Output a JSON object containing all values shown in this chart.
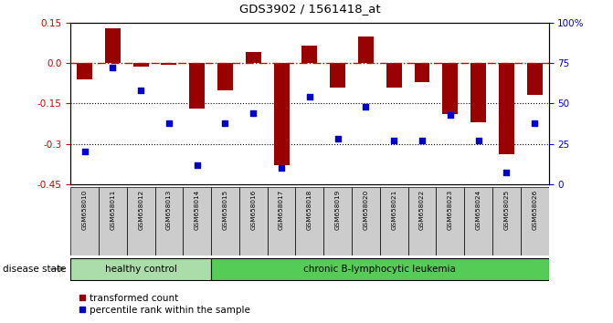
{
  "title": "GDS3902 / 1561418_at",
  "samples": [
    "GSM658010",
    "GSM658011",
    "GSM658012",
    "GSM658013",
    "GSM658014",
    "GSM658015",
    "GSM658016",
    "GSM658017",
    "GSM658018",
    "GSM658019",
    "GSM658020",
    "GSM658021",
    "GSM658022",
    "GSM658023",
    "GSM658024",
    "GSM658025",
    "GSM658026"
  ],
  "bar_values": [
    -0.06,
    0.13,
    -0.015,
    -0.005,
    -0.17,
    -0.1,
    0.04,
    -0.38,
    0.065,
    -0.09,
    0.1,
    -0.09,
    -0.07,
    -0.19,
    -0.22,
    -0.34,
    -0.12
  ],
  "percentile_values": [
    20,
    72,
    58,
    38,
    12,
    38,
    44,
    10,
    54,
    28,
    48,
    27,
    27,
    43,
    27,
    7,
    38
  ],
  "ylim_left": [
    -0.45,
    0.15
  ],
  "ylim_right": [
    0,
    100
  ],
  "yticks_left": [
    0.15,
    0.0,
    -0.15,
    -0.3,
    -0.45
  ],
  "yticks_right": [
    100,
    75,
    50,
    25,
    0
  ],
  "bar_color": "#990000",
  "dot_color": "#0000cc",
  "hline_y0_color": "#cc0000",
  "hline_dotted_color": "#000000",
  "healthy_control_count": 5,
  "group_labels": [
    "healthy control",
    "chronic B-lymphocytic leukemia"
  ],
  "healthy_color": "#aaddaa",
  "cll_color": "#55cc55",
  "disease_label": "disease state",
  "legend_bar_label": "transformed count",
  "legend_dot_label": "percentile rank within the sample",
  "background_color": "#ffffff",
  "tick_label_bg": "#cccccc"
}
